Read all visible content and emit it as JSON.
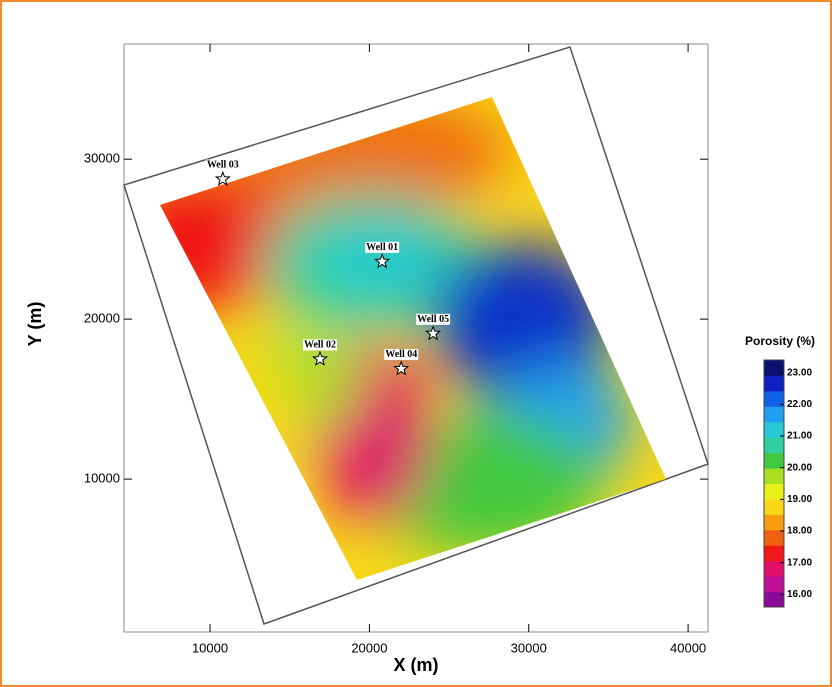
{
  "chart_data": {
    "type": "scatter",
    "xlabel": "X (m)",
    "ylabel": "Y (m)",
    "xlim": [
      4600,
      41250
    ],
    "ylim": [
      440,
      37200
    ],
    "xticks": [
      10000,
      20000,
      30000,
      40000
    ],
    "yticks": [
      10000,
      20000,
      30000
    ],
    "points": [
      {
        "label": "Well 03",
        "x": 10800,
        "y": 28750
      },
      {
        "label": "Well 01",
        "x": 20800,
        "y": 23600
      },
      {
        "label": "Well 05",
        "x": 24000,
        "y": 19100
      },
      {
        "label": "Well 02",
        "x": 16900,
        "y": 17500
      },
      {
        "label": "Well 04",
        "x": 22000,
        "y": 16900
      }
    ],
    "colorbar": {
      "title": "Porosity (%)",
      "lim": [
        15.6,
        23.4
      ],
      "ticks": [
        {
          "value": 23,
          "label": "23.00"
        },
        {
          "value": 22,
          "label": "22.00"
        },
        {
          "value": 21,
          "label": "21.00"
        },
        {
          "value": 20,
          "label": "20.00"
        },
        {
          "value": 19,
          "label": "19.00"
        },
        {
          "value": 18,
          "label": "18.00"
        },
        {
          "value": 17,
          "label": "17.00"
        },
        {
          "value": 16,
          "label": "16.00"
        }
      ],
      "colors": [
        "#8a0a9a",
        "#c0109a",
        "#e0106a",
        "#f01818",
        "#f06010",
        "#f89c10",
        "#f8d818",
        "#e8f018",
        "#a8e020",
        "#40c840",
        "#30d0a0",
        "#28c8d8",
        "#20a0f0",
        "#1060e8",
        "#1020c0",
        "#0a1070"
      ]
    }
  }
}
